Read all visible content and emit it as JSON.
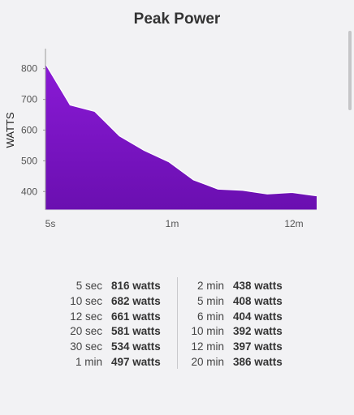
{
  "title": "Peak Power",
  "chart_data": {
    "type": "area",
    "ylabel": "WATTS",
    "yticks": [
      800,
      700,
      600,
      500,
      400
    ],
    "ylim": [
      340,
      860
    ],
    "x_labels": [
      "5s",
      "1m",
      "12m"
    ],
    "x_label_points": [
      0,
      5,
      10
    ],
    "x": [
      0,
      1,
      2,
      3,
      4,
      5,
      6,
      7,
      8,
      9,
      10,
      11
    ],
    "values": [
      816,
      682,
      661,
      581,
      534,
      497,
      438,
      408,
      404,
      392,
      397,
      386
    ],
    "color": "#7a12c4"
  },
  "stats": {
    "left": [
      {
        "label": "5 sec",
        "value": "816 watts"
      },
      {
        "label": "10 sec",
        "value": "682 watts"
      },
      {
        "label": "12 sec",
        "value": "661 watts"
      },
      {
        "label": "20 sec",
        "value": "581 watts"
      },
      {
        "label": "30 sec",
        "value": "534 watts"
      },
      {
        "label": "1 min",
        "value": "497 watts"
      }
    ],
    "right": [
      {
        "label": "2 min",
        "value": "438 watts"
      },
      {
        "label": "5 min",
        "value": "408 watts"
      },
      {
        "label": "6 min",
        "value": "404 watts"
      },
      {
        "label": "10 min",
        "value": "392 watts"
      },
      {
        "label": "12 min",
        "value": "397 watts"
      },
      {
        "label": "20 min",
        "value": "386 watts"
      }
    ]
  }
}
